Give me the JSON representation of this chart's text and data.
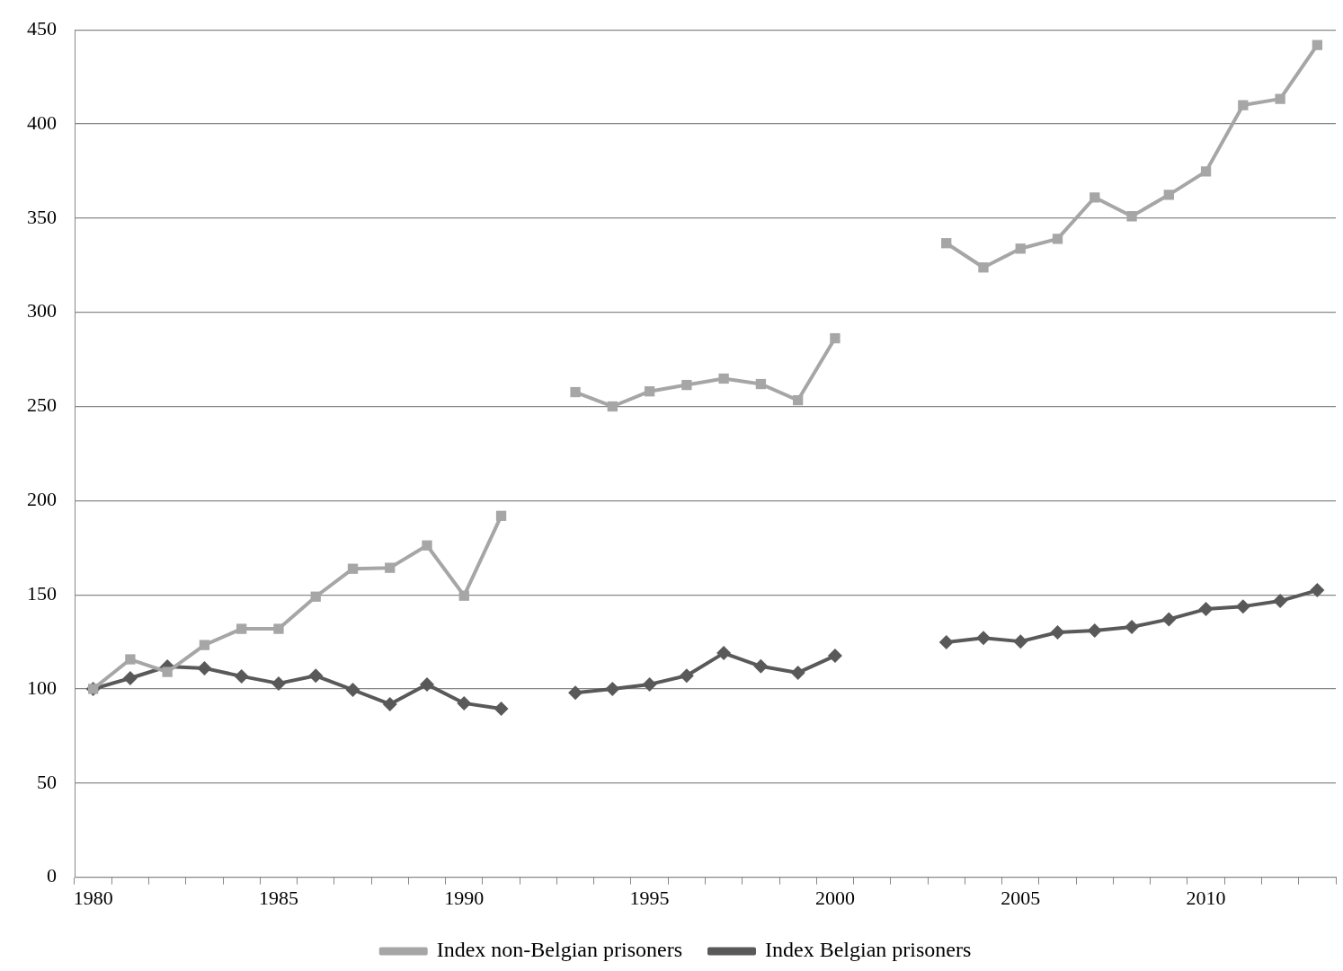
{
  "chart_data": {
    "type": "line",
    "categories": [
      "1980",
      null,
      null,
      null,
      null,
      "1985",
      null,
      null,
      null,
      null,
      "1990",
      null,
      null,
      null,
      null,
      "1995",
      null,
      null,
      null,
      null,
      "2000",
      null,
      null,
      null,
      null,
      "2005",
      null,
      null,
      null,
      null,
      "2010",
      null,
      null,
      null
    ],
    "series": [
      {
        "name": "Index Belgian prisoners",
        "color": "#595959",
        "marker": "diamond",
        "values": [
          100,
          105.7,
          111.9,
          111,
          106.7,
          102.9,
          107,
          99.5,
          91.9,
          102.4,
          92.4,
          89.5,
          null,
          98,
          100,
          102.4,
          107,
          119,
          112,
          108.6,
          117.6,
          null,
          null,
          124.8,
          127,
          125.2,
          130,
          131,
          132.9,
          137,
          142.4,
          143.8,
          146.7,
          152.4
        ]
      },
      {
        "name": "Index non-Belgian prisoners",
        "color": "#a6a6a6",
        "marker": "square",
        "values": [
          100,
          115.7,
          109,
          123.3,
          131.9,
          131.9,
          149,
          163.8,
          164.3,
          176.2,
          149.5,
          191.9,
          null,
          257.6,
          250,
          258,
          261.4,
          264.8,
          261.9,
          253.3,
          286.2,
          null,
          null,
          336.7,
          323.8,
          333.8,
          339,
          361,
          351,
          362.4,
          374.8,
          410,
          413.3,
          441.9
        ]
      }
    ],
    "ylim": [
      0,
      450
    ],
    "yticks": [
      0,
      50,
      100,
      150,
      200,
      250,
      300,
      350,
      400,
      450
    ],
    "grid": "y",
    "legend": "bottom",
    "line_style": "solid"
  }
}
